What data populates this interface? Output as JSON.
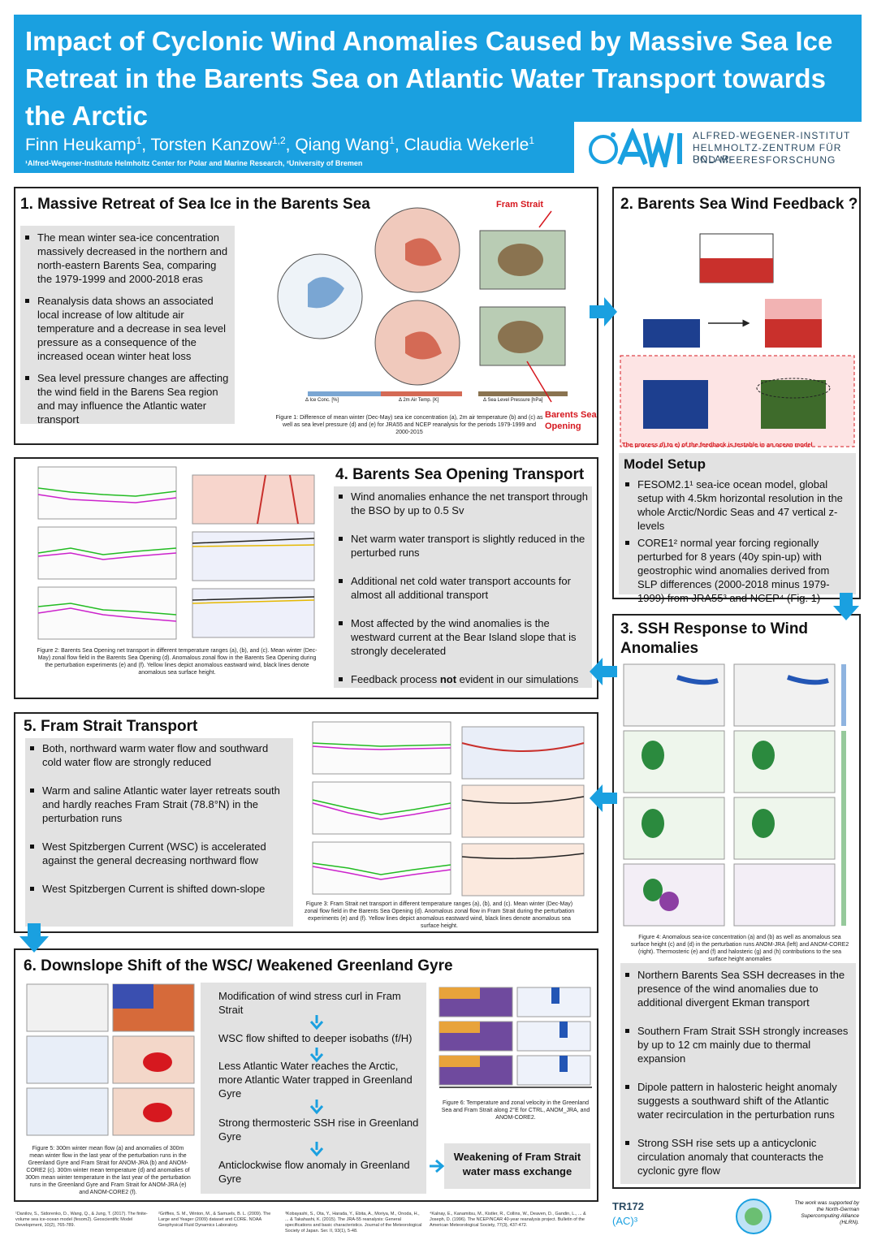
{
  "header": {
    "title": "Impact of Cyclonic Wind Anomalies Caused by Massive Sea Ice Retreat in the Barents Sea on Atlantic Water Transport towards the Arctic",
    "authors": [
      {
        "name": "Finn Heukamp",
        "aff": "1"
      },
      {
        "name": "Torsten Kanzow",
        "aff": "1,2"
      },
      {
        "name": "Qiang Wang",
        "aff": "1"
      },
      {
        "name": "Claudia Wekerle",
        "aff": "1"
      }
    ],
    "affiliations": "¹Alfred-Wegener-Institute Helmholtz Center for Polar and Marine Research, ²University of Bremen",
    "logo": {
      "line1": "ALFRED-WEGENER-INSTITUT",
      "line2": "HELMHOLTZ-ZENTRUM FÜR POLAR-",
      "line3": "UND MEERESFORSCHUNG"
    }
  },
  "s1": {
    "title": "1. Massive Retreat of Sea Ice in the Barents Sea",
    "bullets": [
      "The mean winter sea-ice concentration massively decreased in the northern and north-eastern Barents Sea, comparing the 1979-1999 and 2000-2018 eras",
      "Reanalysis data shows an associated local increase of low altitude air temperature and a decrease in sea level pressure as a consequence of the increased ocean winter heat loss",
      "Sea level pressure changes are affecting the wind field in the Barens Sea region and may influence the Atlantic water transport"
    ],
    "fram_label": "Fram Strait",
    "bso_label": "Barents Sea Opening",
    "caption": "Figure 1: Difference of mean winter (Dec-May) sea ice concentration (a), 2m air temperature (b) and (c) as well as sea level pressure (d) and (e) for JRA55 and NCEP reanalysis for the periods 1979-1999 and 2000-2015",
    "colorbars": [
      "Δ Ice Conc. [%]",
      "Δ 2m Air Temp. [K]",
      "Δ Sea Level Pressure [hPa]"
    ]
  },
  "s2": {
    "title": "2. Barents Sea Wind Feedback ?",
    "feedback_note": "The process d) to e) of the feedback is testable in an ocean model",
    "model_title": "Model Setup",
    "model_bullets": [
      "FESOM2.1¹ sea-ice ocean model, global setup with 4.5km horizontal resolution in the whole Arctic/Nordic Seas and 47 vertical z-levels",
      "CORE1² normal year forcing regionally perturbed for 8 years (40y spin-up) with geostrophic wind anomalies derived from SLP differences (2000-2018 minus 1979-1999) from JRA55³ and NCEP⁴ (Fig. 1)"
    ]
  },
  "s3": {
    "title": "3. SSH Response to Wind Anomalies",
    "caption": "Figure 4: Anomalous sea-ice concentration (a) and (b) as well as anomalous sea surface height (c) and (d) in the perturbation runs ANOM-JRA (left) and ANOM-CORE2 (right). Thermosteric (e) and (f) and halosteric (g) and (h) contributions to the sea surface height anomalies",
    "bullets": [
      "Northern Barents Sea SSH decreases in the presence of the wind anomalies due to additional divergent Ekman transport",
      "Southern Fram Strait SSH strongly increases by up to 12 cm mainly due to thermal expansion",
      "Dipole pattern in halosteric height anomaly suggests a southward shift of the Atlantic water recirculation in the perturbation runs",
      "Strong SSH rise sets up a anticyclonic circulation anomaly that counteracts the cyclonic gyre flow"
    ]
  },
  "s4": {
    "title": "4. Barents Sea Opening Transport",
    "bullets": [
      "Wind anomalies enhance the net transport through the BSO by up to 0.5 Sv",
      "Net warm water transport is slightly reduced in the perturbed runs",
      "Additional net cold water transport accounts for almost all additional transport",
      "Most affected by the wind anomalies is the westward current at the Bear Island slope that is strongly decelerated"
    ],
    "last_bullet_pre": "Feedback process ",
    "last_bullet_bold": "not",
    "last_bullet_post": " evident in our simulations",
    "caption": "Figure 2: Barents Sea Opening net transport in different temperature ranges (a), (b), and (c). Mean winter (Dec-May) zonal flow field in the Barents Sea Opening (d). Anomalous zonal flow in the Barents Sea Opening during the perturbation experiments (e) and (f). Yellow lines depict anomalous eastward wind, black lines denote anomalous sea surface height."
  },
  "s5": {
    "title": "5. Fram Strait Transport",
    "bullets": [
      "Both, northward warm water flow and southward cold water flow are strongly reduced",
      "Warm and saline Atlantic water layer retreats south and hardly reaches Fram Strait (78.8°N) in the perturbation runs",
      "West Spitzbergen Current (WSC) is accelerated against the general decreasing northward flow",
      "West Spitzbergen Current is shifted down-slope"
    ],
    "caption": "Figure 3: Fram Strait net transport in different temperature ranges (a), (b), and (c). Mean winter (Dec-May) zonal flow field in the Barents Sea Opening (d). Anomalous zonal flow in Fram Strait during the perturbation experiments (e) and (f). Yellow lines depict anomalous eastward wind, black lines denote anomalous sea surface height."
  },
  "s6": {
    "title": "6. Downslope Shift of the WSC/ Weakened Greenland Gyre",
    "flow": [
      "Modification of wind stress curl in Fram Strait",
      "WSC flow shifted to deeper isobaths (f/H)",
      "Less Atlantic Water reaches the Arctic, more Atlantic Water trapped in Greenland Gyre",
      "Strong thermosteric SSH rise in Greenland Gyre",
      "Anticlockwise flow anomaly in Greenland Gyre"
    ],
    "conclusion": "Weakening of Fram Strait water mass exchange",
    "caption5": "Figure 5: 300m winter mean flow (a) and anomalies of 300m mean winter flow in the last year of the perturbation runs in the Greenland Gyre and Fram Strait for ANOM-JRA (b) and ANOM-CORE2 (c). 300m winter mean temperature (d) and anomalies of 300m mean winter temperature in the last year of the perturbation runs in the Greenland Gyre and Fram Strait for ANOM-JRA (e) and ANOM-CORE2 (f).",
    "caption6": "Figure 6: Temperature and zonal velocity in the Greenland Sea and Fram Strait along 2°E for CTRL, ANOM_JRA, and ANOM-CORE2."
  },
  "footer": {
    "refs": [
      "¹Danilov, S., Sidorenko, D., Wang, Q., & Jung, T. (2017). The finite-volume sea ice-ocean model (fesom2). Geoscientific Model Development, 10(2), 765-789.",
      "²Griffies, S. M., Winton, M., & Samuels, B. L. (2009). The Large and Yeager (2009) dataset and CORE. NOAA Geophysical Fluid Dynamics Laboratory.",
      "³Kobayashi, S., Ota, Y., Harada, Y., Ebita, A., Moriya, M., Onoda, H., ... & Takahashi, K. (2015). The JRA-55 reanalysis: General specifications and basic characteristics. Journal of the Meteorological Society of Japan. Ser. II, 93(1), 5-48.",
      "⁴Kalnay, E., Kanamitsu, M., Kistler, R., Collins, W., Deaven, D., Gandin, L., ... & Joseph, D. (1996). The NCEP/NCAR 40-year reanalysis project. Bulletin of the American Meteorological Society, 77(3), 437-472."
    ],
    "tr_logo": "TR172",
    "ac3_logo": "(AC)³",
    "support": "The work was supported by the North-German Supercomputing Alliance (HLRN)."
  }
}
